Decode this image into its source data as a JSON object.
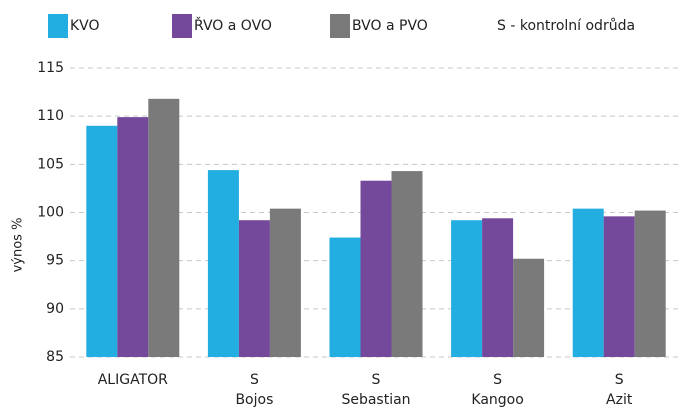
{
  "chart_data": {
    "type": "bar",
    "y_label": "výnos %",
    "annotation": "S - kontrolní odrůda",
    "categories": [
      [
        "ALIGATOR"
      ],
      [
        "S",
        "Bojos"
      ],
      [
        "S",
        "Sebastian"
      ],
      [
        "S",
        "Kangoo"
      ],
      [
        "S",
        "Azit"
      ]
    ],
    "series": [
      {
        "name": "KVO",
        "color": "#22aee0",
        "values": [
          109,
          104.4,
          97.4,
          99.2,
          100.4
        ]
      },
      {
        "name": "ŘVO a OVO",
        "color": "#74489a",
        "values": [
          109.9,
          99.2,
          103.3,
          99.4,
          99.6
        ]
      },
      {
        "name": "BVO a PVO",
        "color": "#7a7a7a",
        "values": [
          111.8,
          100.4,
          104.3,
          95.2,
          100.2
        ]
      }
    ],
    "ylim": [
      85,
      115
    ],
    "yticks": [
      85,
      90,
      95,
      100,
      105,
      110,
      115
    ],
    "grid": true
  }
}
